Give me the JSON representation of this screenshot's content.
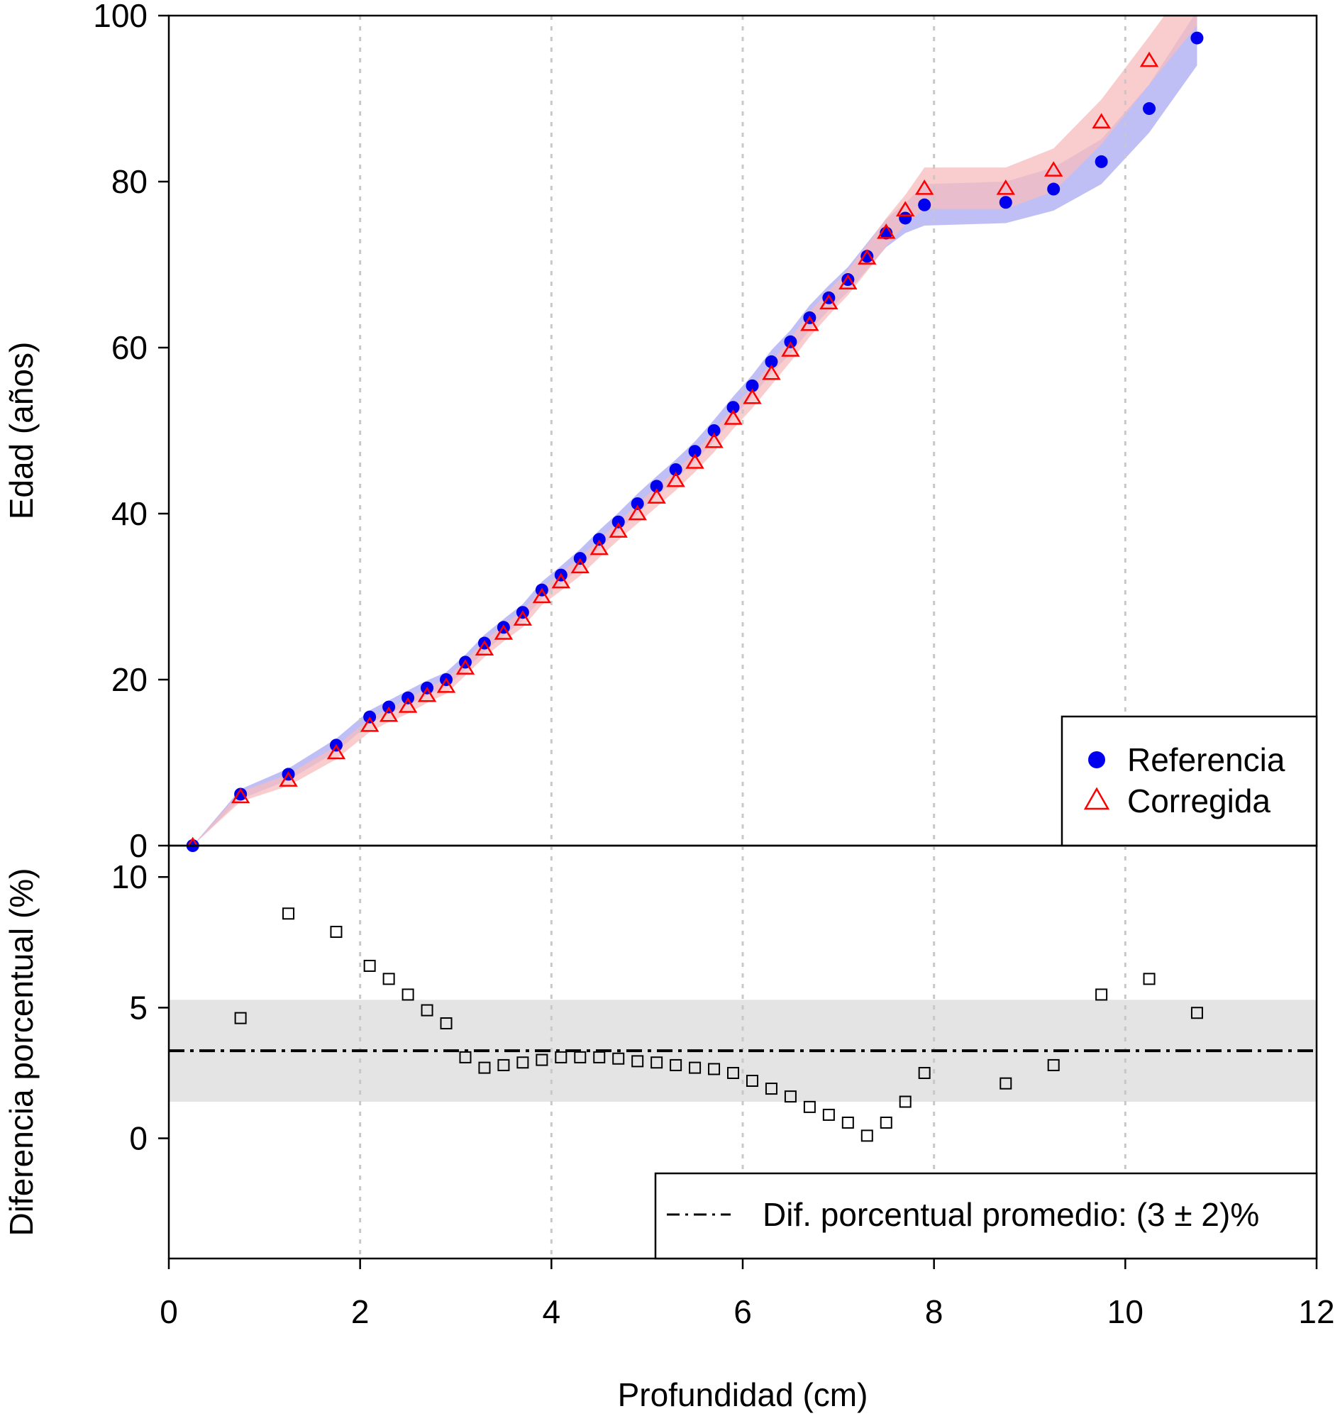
{
  "chart_data": [
    {
      "type": "scatter",
      "panel": "top",
      "xlabel": "",
      "ylabel": "Edad (años)",
      "xlim": [
        0,
        12
      ],
      "ylim": [
        0,
        100
      ],
      "yticks": [
        0,
        20,
        40,
        60,
        80,
        100
      ],
      "vertical_grid": "dotted at x = 2, 4, 6, 8, 10",
      "legend": {
        "position": "bottom-right"
      },
      "x": [
        0.25,
        0.75,
        1.25,
        1.75,
        2.1,
        2.3,
        2.5,
        2.7,
        2.9,
        3.1,
        3.3,
        3.5,
        3.7,
        3.9,
        4.1,
        4.3,
        4.5,
        4.7,
        4.9,
        5.1,
        5.3,
        5.5,
        5.7,
        5.9,
        6.1,
        6.3,
        6.5,
        6.7,
        6.9,
        7.1,
        7.3,
        7.5,
        7.7,
        7.9,
        8.75,
        9.25,
        9.75,
        10.25,
        10.75
      ],
      "series": [
        {
          "name": "Referencia",
          "marker": "filled-circle",
          "color": "#0000ee",
          "band_color": "#b4b4f5",
          "values": [
            0,
            6.2,
            8.6,
            12.1,
            15.5,
            16.7,
            17.8,
            19.0,
            20.0,
            22.1,
            24.4,
            26.3,
            28.1,
            30.8,
            32.6,
            34.6,
            36.9,
            39.0,
            41.2,
            43.3,
            45.3,
            47.5,
            50.0,
            52.8,
            55.4,
            58.3,
            60.7,
            63.6,
            66.0,
            68.2,
            71.0,
            73.8,
            75.6,
            77.2,
            77.5,
            79.1,
            82.4,
            88.8,
            97.3
          ],
          "band_half_width": [
            0,
            0.6,
            0.7,
            0.8,
            0.8,
            0.8,
            0.9,
            0.9,
            0.9,
            0.9,
            1.0,
            1.0,
            1.0,
            1.0,
            1.1,
            1.1,
            1.1,
            1.1,
            1.2,
            1.2,
            1.2,
            1.2,
            1.3,
            1.3,
            1.3,
            1.4,
            1.4,
            1.5,
            1.5,
            1.5,
            1.6,
            1.7,
            1.8,
            2.5,
            2.5,
            2.6,
            2.7,
            2.9,
            3.3
          ]
        },
        {
          "name": "Corregida",
          "marker": "open-triangle",
          "color": "#ff0000",
          "band_color": "#f7bcbc",
          "values": [
            0,
            5.9,
            7.9,
            11.2,
            14.5,
            15.7,
            16.8,
            18.1,
            19.2,
            21.4,
            23.7,
            25.6,
            27.3,
            30.0,
            31.8,
            33.6,
            35.8,
            37.9,
            40.0,
            42.0,
            44.0,
            46.2,
            48.7,
            51.5,
            54.0,
            56.9,
            59.7,
            62.8,
            65.4,
            67.8,
            70.8,
            73.9,
            76.6,
            79.2,
            79.2,
            81.4,
            87.2,
            94.6,
            102.1
          ],
          "band_half_width": [
            0,
            0.6,
            0.7,
            0.8,
            0.8,
            0.8,
            0.9,
            0.9,
            0.9,
            0.9,
            1.0,
            1.0,
            1.0,
            1.0,
            1.1,
            1.1,
            1.1,
            1.1,
            1.2,
            1.2,
            1.2,
            1.2,
            1.3,
            1.3,
            1.3,
            1.4,
            1.4,
            1.5,
            1.5,
            1.5,
            1.6,
            1.7,
            1.8,
            2.5,
            2.5,
            2.6,
            2.7,
            2.9,
            3.3
          ]
        }
      ]
    },
    {
      "type": "scatter",
      "panel": "bottom",
      "xlabel": "Profundidad (cm)",
      "ylabel": "Diferencia porcentual (%)",
      "xlim": [
        0,
        12
      ],
      "ylim": [
        -4.6,
        11.2
      ],
      "xticks": [
        0,
        2,
        4,
        6,
        8,
        10,
        12
      ],
      "yticks": [
        0,
        5,
        10
      ],
      "vertical_grid": "dotted at x = 2, 4, 6, 8, 10",
      "legend": {
        "position": "bottom-right"
      },
      "mean_line": {
        "value": 3.35,
        "style": "dash-dot",
        "label": "Dif. porcentual promedio: (3 ± 2)%"
      },
      "band": {
        "low": 1.4,
        "high": 5.3,
        "color": "#e4e4e4"
      },
      "x": [
        0.75,
        1.25,
        1.75,
        2.1,
        2.3,
        2.5,
        2.7,
        2.9,
        3.1,
        3.3,
        3.5,
        3.7,
        3.9,
        4.1,
        4.3,
        4.5,
        4.7,
        4.9,
        5.1,
        5.3,
        5.5,
        5.7,
        5.9,
        6.1,
        6.3,
        6.5,
        6.7,
        6.9,
        7.1,
        7.3,
        7.5,
        7.7,
        7.9,
        8.75,
        9.25,
        9.75,
        10.25,
        10.75
      ],
      "series": [
        {
          "name": "",
          "marker": "open-square",
          "color": "#000000",
          "values": [
            4.6,
            8.6,
            7.9,
            6.6,
            6.1,
            5.5,
            4.9,
            4.4,
            3.1,
            2.7,
            2.8,
            2.9,
            3.0,
            3.1,
            3.1,
            3.1,
            3.05,
            2.95,
            2.9,
            2.8,
            2.7,
            2.65,
            2.5,
            2.2,
            1.9,
            1.6,
            1.2,
            0.9,
            0.6,
            0.1,
            0.6,
            1.4,
            2.5,
            2.1,
            2.8,
            5.5,
            6.1,
            4.8
          ]
        }
      ]
    }
  ]
}
